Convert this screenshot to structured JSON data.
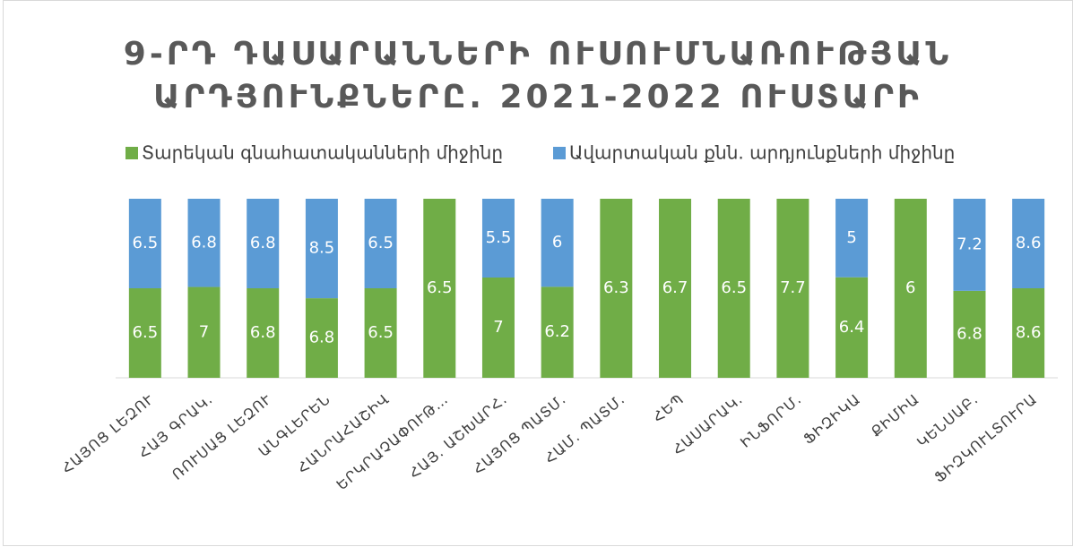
{
  "chart_data": {
    "type": "bar",
    "stacking": "percent",
    "title": [
      "9-ՐԴ ԴԱՍԱՐԱՆՆԵՐԻ ՈՒՍՈՒՄՆԱՌՈՒԹՅԱՆ",
      "ԱՐԴՅՈՒՆՔՆԵՐԸ. 2021-2022 ՈՒՍՏԱՐԻ"
    ],
    "categories": [
      "ՀԱՅՈՑ ԼԵԶՈՒ",
      "ՀԱՅ ԳՐԱԿ.",
      "ՌՈՒՍԱՑ ԼԵԶՈՒ",
      "ԱՆԳԼԵՐԵՆ",
      "ՀԱՆՐԱՀԱՇԻՎ",
      "ԵՐԿՐԱՉԱՓՈՒԹ…",
      "ՀԱՅ. ԱՇԽԱՐՀ.",
      "ՀԱՅՈՑ ՊԱՏՄ.",
      "ՀԱՄ. ՊԱՏՄ.",
      "ՀԵՊ",
      "ՀԱՍԱՐԱԿ.",
      "ԻՆՖՈՐՄ.",
      "ՖԻԶԻԿԱ",
      "ՔԻՄԻԱ",
      "ԿԵՆՍԱԲ.",
      "ՖԻԶԿՈՒԼՏՈՒՐԱ"
    ],
    "series": [
      {
        "name": "Տարեկան գնահատականների միջինը",
        "color": "#70ad47",
        "values": [
          6.5,
          7,
          6.8,
          6.8,
          6.5,
          6.5,
          7,
          6.2,
          6.3,
          6.7,
          6.5,
          7.7,
          6.4,
          6,
          6.8,
          8.6
        ]
      },
      {
        "name": "Ավարտական քնն. արդյունքների միջինը",
        "color": "#5b9bd5",
        "values": [
          6.5,
          6.8,
          6.8,
          8.5,
          6.5,
          null,
          5.5,
          6,
          null,
          null,
          null,
          null,
          5,
          null,
          7.2,
          8.6
        ]
      }
    ],
    "legend": "top"
  }
}
